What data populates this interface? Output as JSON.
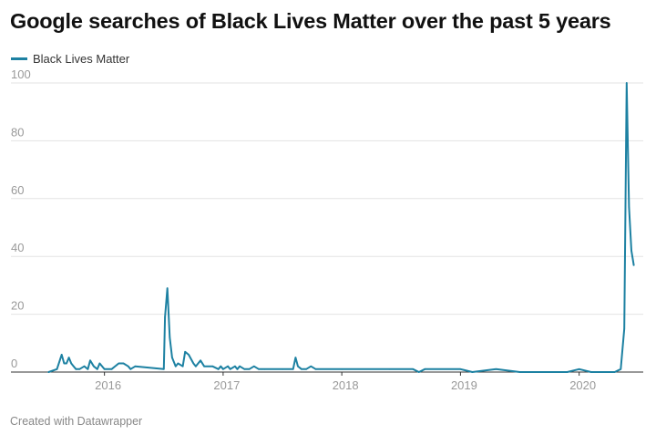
{
  "header": {
    "title": "Google searches of Black Lives Matter over the past 5 years"
  },
  "footer": {
    "credit": "Created with Datawrapper"
  },
  "colors": {
    "series": "#1d81a2",
    "grid": "#e3e3e3",
    "axis": "#333333",
    "tick_text": "#999999"
  },
  "chart_data": {
    "type": "line",
    "title": "Google searches of Black Lives Matter over the past 5 years",
    "xlabel": "",
    "ylabel": "",
    "ylim": [
      0,
      100
    ],
    "xlim": [
      2015.45,
      2020.54
    ],
    "grid": true,
    "legend_position": "top-left",
    "y_ticks": [
      "0",
      "20",
      "40",
      "60",
      "80",
      "100"
    ],
    "x_ticks": [
      {
        "value": 2016,
        "label": "2016"
      },
      {
        "value": 2017,
        "label": "2017"
      },
      {
        "value": 2018,
        "label": "2018"
      },
      {
        "value": 2019,
        "label": "2019"
      },
      {
        "value": 2020,
        "label": "2020"
      }
    ],
    "series": [
      {
        "name": "Black Lives Matter",
        "x": [
          2015.53,
          2015.6,
          2015.64,
          2015.66,
          2015.68,
          2015.7,
          2015.72,
          2015.74,
          2015.76,
          2015.79,
          2015.83,
          2015.86,
          2015.88,
          2015.91,
          2015.94,
          2015.96,
          2016.0,
          2016.06,
          2016.12,
          2016.16,
          2016.2,
          2016.22,
          2016.26,
          2016.5,
          2016.51,
          2016.53,
          2016.55,
          2016.57,
          2016.6,
          2016.62,
          2016.66,
          2016.68,
          2016.71,
          2016.75,
          2016.77,
          2016.81,
          2016.84,
          2016.91,
          2016.96,
          2016.98,
          2017.0,
          2017.04,
          2017.06,
          2017.1,
          2017.12,
          2017.14,
          2017.18,
          2017.22,
          2017.26,
          2017.3,
          2017.33,
          2017.35,
          2017.5,
          2017.59,
          2017.61,
          2017.63,
          2017.66,
          2017.7,
          2017.74,
          2017.78,
          2018.0,
          2018.4,
          2018.6,
          2018.65,
          2018.7,
          2019.0,
          2019.1,
          2019.3,
          2019.5,
          2019.9,
          2020.0,
          2020.1,
          2020.3,
          2020.35,
          2020.38,
          2020.4,
          2020.42,
          2020.44,
          2020.46
        ],
        "values": [
          0,
          1,
          6,
          3,
          3,
          5,
          3,
          2,
          1,
          1,
          2,
          1,
          4,
          2,
          1,
          3,
          1,
          1,
          3,
          3,
          2,
          1,
          2,
          1,
          19,
          29,
          12,
          5,
          2,
          3,
          2,
          7,
          6,
          3,
          2,
          4,
          2,
          2,
          1,
          2,
          1,
          2,
          1,
          2,
          1,
          2,
          1,
          1,
          2,
          1,
          1,
          1,
          1,
          1,
          5,
          2,
          1,
          1,
          2,
          1,
          1,
          1,
          1,
          0,
          1,
          1,
          0,
          1,
          0,
          0,
          1,
          0,
          0,
          1,
          15,
          100,
          57,
          42,
          37
        ]
      }
    ]
  }
}
